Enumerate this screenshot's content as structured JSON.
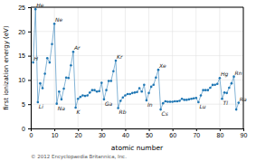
{
  "chart_data": {
    "type": "line",
    "marker": "circle",
    "grid": true,
    "xlabel": "atomic number",
    "ylabel": "first ionization energy (eV)",
    "caption": "© 2012 Encyclopaedia Britannica, Inc.",
    "xlim": [
      0,
      90
    ],
    "ylim": [
      0,
      25
    ],
    "xticks": [
      0,
      10,
      20,
      30,
      40,
      50,
      60,
      70,
      80,
      90
    ],
    "yticks": [
      0,
      5,
      10,
      15,
      20,
      25
    ],
    "x": [
      1,
      2,
      3,
      4,
      5,
      6,
      7,
      8,
      9,
      10,
      11,
      12,
      13,
      14,
      15,
      16,
      17,
      18,
      19,
      20,
      21,
      22,
      23,
      24,
      25,
      26,
      27,
      28,
      29,
      30,
      31,
      32,
      33,
      34,
      35,
      36,
      37,
      38,
      39,
      40,
      41,
      42,
      43,
      44,
      45,
      46,
      47,
      48,
      49,
      50,
      51,
      52,
      53,
      54,
      55,
      56,
      57,
      58,
      59,
      60,
      61,
      62,
      63,
      64,
      65,
      66,
      67,
      68,
      69,
      70,
      71,
      72,
      73,
      74,
      75,
      76,
      77,
      78,
      79,
      80,
      81,
      82,
      83,
      84,
      85,
      86,
      87,
      88
    ],
    "values": [
      13.6,
      24.6,
      5.4,
      9.3,
      8.3,
      11.3,
      14.5,
      13.6,
      17.4,
      21.6,
      5.1,
      7.6,
      6.0,
      8.2,
      10.5,
      10.4,
      13.0,
      15.8,
      4.3,
      6.1,
      6.5,
      6.8,
      6.7,
      6.8,
      7.4,
      7.9,
      7.9,
      7.6,
      7.7,
      9.4,
      6.0,
      7.9,
      9.8,
      9.8,
      11.8,
      14.0,
      4.2,
      5.7,
      6.4,
      6.8,
      7.1,
      7.1,
      7.3,
      7.4,
      7.5,
      8.3,
      7.6,
      9.0,
      5.8,
      7.3,
      8.6,
      9.0,
      10.5,
      12.1,
      3.9,
      5.2,
      5.6,
      5.5,
      5.5,
      5.5,
      5.6,
      5.6,
      5.7,
      6.1,
      5.9,
      5.9,
      6.0,
      6.1,
      6.2,
      6.3,
      5.4,
      6.8,
      7.9,
      7.9,
      7.9,
      8.4,
      8.97,
      9.0,
      9.2,
      10.4,
      6.1,
      7.4,
      7.3,
      8.4,
      9.3,
      10.7,
      3.9,
      5.3
    ],
    "annotations": [
      {
        "text": "H",
        "x": 1,
        "y": 13.6
      },
      {
        "text": "He",
        "x": 2,
        "y": 24.6
      },
      {
        "text": "Li",
        "x": 3,
        "y": 5.4
      },
      {
        "text": "Na",
        "x": 11,
        "y": 5.1
      },
      {
        "text": "Ne",
        "x": 10,
        "y": 21.6
      },
      {
        "text": "Ar",
        "x": 18,
        "y": 15.8
      },
      {
        "text": "K",
        "x": 19,
        "y": 4.3
      },
      {
        "text": "Ga",
        "x": 31,
        "y": 6.0
      },
      {
        "text": "Kr",
        "x": 36,
        "y": 14.0
      },
      {
        "text": "Rb",
        "x": 37,
        "y": 4.2
      },
      {
        "text": "In",
        "x": 49,
        "y": 5.8
      },
      {
        "text": "Xe",
        "x": 54,
        "y": 12.1
      },
      {
        "text": "Cs",
        "x": 55,
        "y": 3.9
      },
      {
        "text": "Lu",
        "x": 71,
        "y": 5.4
      },
      {
        "text": "Hg",
        "x": 80,
        "y": 10.4
      },
      {
        "text": "Tl",
        "x": 81,
        "y": 6.1
      },
      {
        "text": "Rn",
        "x": 86,
        "y": 10.7
      },
      {
        "text": "Ra",
        "x": 88,
        "y": 5.3
      }
    ]
  }
}
